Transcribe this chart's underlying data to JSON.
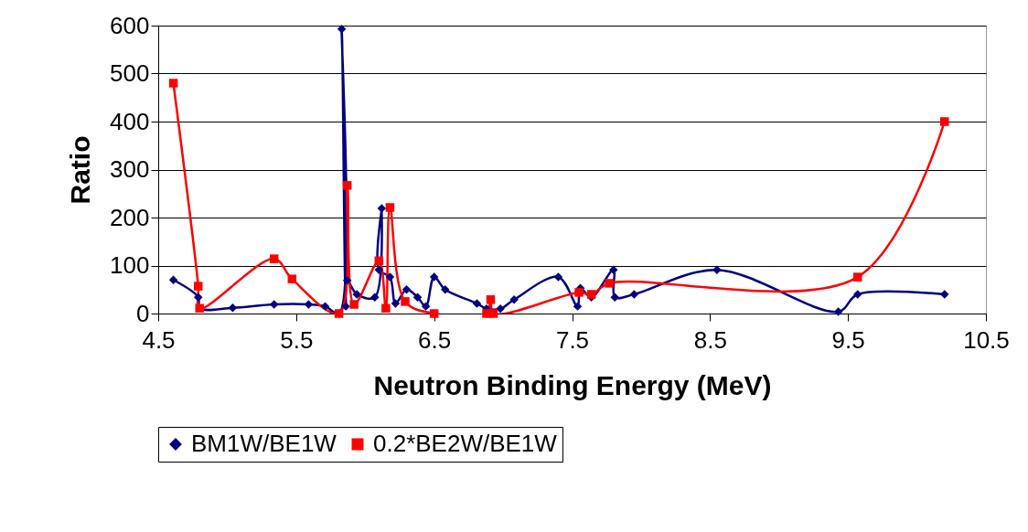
{
  "chart_data": {
    "type": "line",
    "xlabel": "Neutron Binding Energy (MeV)",
    "ylabel": "Ratio",
    "xlim": [
      4.5,
      10.5
    ],
    "xticks": [
      4.5,
      5.5,
      6.5,
      7.5,
      8.5,
      9.5,
      10.5
    ],
    "ylim": [
      0,
      600
    ],
    "yticks": [
      0,
      100,
      200,
      300,
      400,
      500,
      600
    ],
    "grid": "y",
    "legend": "bottom",
    "series": [
      {
        "name": "BM1W/BE1W",
        "color": "#000080",
        "marker": "diamond",
        "x": [
          4.61,
          4.79,
          4.8,
          5.04,
          5.34,
          5.59,
          5.71,
          5.81,
          5.83,
          5.86,
          5.87,
          5.94,
          6.07,
          6.12,
          6.1,
          6.18,
          6.22,
          6.3,
          6.38,
          6.44,
          6.5,
          6.58,
          6.81,
          6.88,
          6.98,
          7.08,
          7.4,
          7.54,
          7.56,
          7.64,
          7.8,
          7.81,
          7.95,
          8.55,
          9.43,
          9.57,
          10.2
        ],
        "values": [
          70,
          34,
          11,
          12,
          19,
          19,
          15,
          0,
          593,
          15,
          69,
          40,
          34,
          219,
          91,
          76,
          21,
          50,
          34,
          15,
          76,
          50,
          21,
          10,
          10,
          29,
          76,
          15,
          53,
          34,
          91,
          34,
          40,
          91,
          4,
          40,
          40
        ]
      },
      {
        "name": "0.2*BE2W/BE1W",
        "color": "#ff0000",
        "marker": "square",
        "x": [
          4.61,
          4.79,
          4.8,
          5.34,
          5.47,
          5.81,
          5.87,
          5.92,
          6.1,
          6.15,
          6.18,
          6.29,
          6.5,
          6.88,
          6.91,
          6.93,
          7.55,
          7.64,
          7.77,
          9.57,
          10.2
        ],
        "values": [
          480,
          57,
          11,
          114,
          72,
          0,
          267,
          19,
          110,
          11,
          221,
          25,
          0,
          0,
          29,
          0,
          44,
          40,
          63,
          76,
          400
        ]
      }
    ]
  }
}
